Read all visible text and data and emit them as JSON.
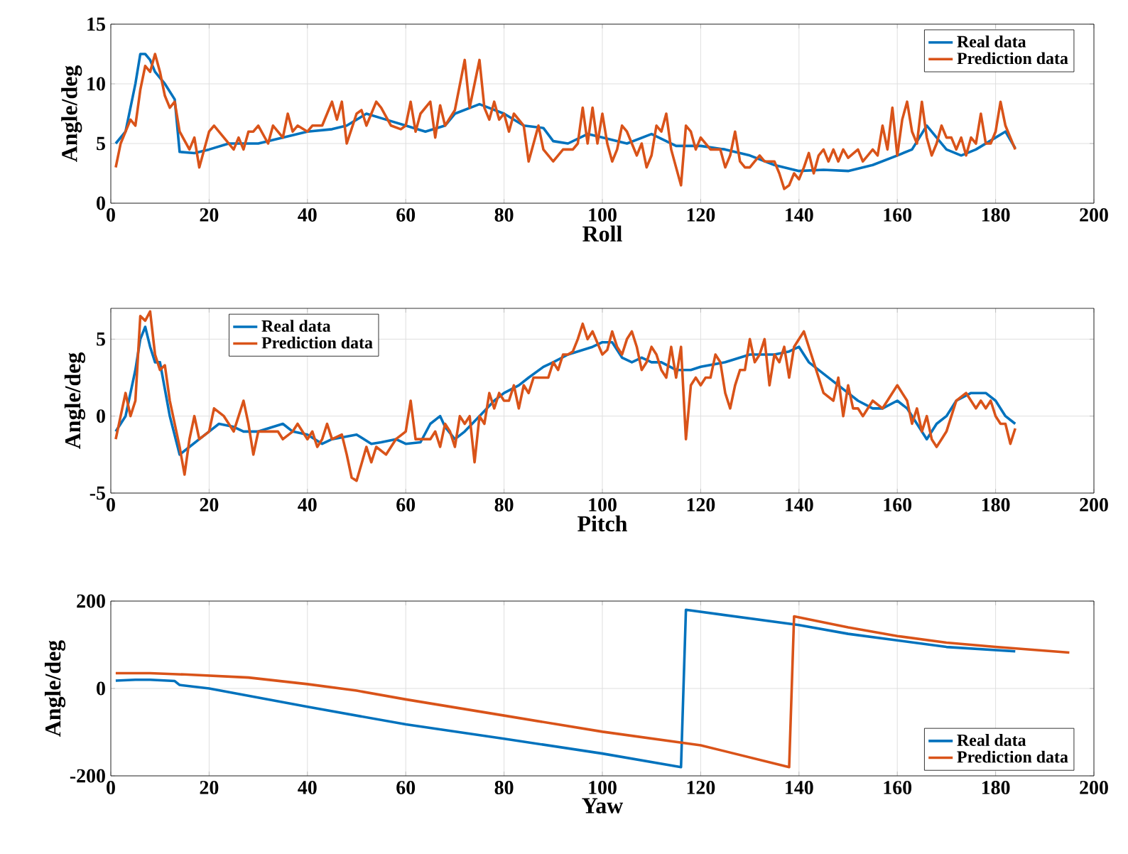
{
  "chart_data": [
    {
      "type": "line",
      "xlabel": "Roll",
      "ylabel": "Angle/deg",
      "xlim": [
        0,
        200
      ],
      "ylim": [
        0,
        15
      ],
      "xticks": [
        0,
        20,
        40,
        60,
        80,
        100,
        120,
        140,
        160,
        180,
        200
      ],
      "yticks": [
        0,
        5,
        10,
        15
      ],
      "grid": true,
      "legend": "top right",
      "line_style": "solid",
      "series": [
        {
          "name": "Real data",
          "color": "#0072bd",
          "x": [
            1,
            3,
            5,
            6,
            7,
            8,
            9,
            11,
            13,
            14,
            17,
            20,
            24,
            30,
            35,
            40,
            45,
            48,
            52,
            56,
            60,
            64,
            68,
            70,
            75,
            80,
            84,
            88,
            90,
            93,
            97,
            100,
            105,
            110,
            115,
            120,
            125,
            130,
            135,
            140,
            145,
            150,
            155,
            160,
            163,
            166,
            170,
            173,
            176,
            180,
            182,
            184
          ],
          "values": [
            5,
            6,
            10,
            12.5,
            12.5,
            12,
            11,
            10,
            8.7,
            4.3,
            4.2,
            4.5,
            5,
            5,
            5.5,
            6,
            6.2,
            6.5,
            7.5,
            7,
            6.5,
            6,
            6.5,
            7.5,
            8.3,
            7.5,
            6.5,
            6.3,
            5.2,
            5,
            5.8,
            5.5,
            5,
            5.8,
            4.8,
            4.8,
            4.5,
            4,
            3.2,
            2.7,
            2.8,
            2.7,
            3.2,
            4,
            4.5,
            6.5,
            4.5,
            4,
            4.5,
            5.5,
            6,
            4.6
          ]
        },
        {
          "name": "Prediction data",
          "color": "#d95319",
          "x": [
            1,
            2,
            4,
            5,
            6,
            7,
            8,
            9,
            10,
            11,
            12,
            13,
            14,
            16,
            17,
            18,
            19,
            20,
            21,
            23,
            25,
            26,
            27,
            28,
            29,
            30,
            32,
            33,
            35,
            36,
            37,
            38,
            40,
            41,
            43,
            45,
            46,
            47,
            48,
            50,
            51,
            52,
            54,
            55,
            57,
            59,
            60,
            61,
            62,
            63,
            65,
            66,
            67,
            68,
            70,
            72,
            73,
            75,
            76,
            77,
            78,
            79,
            80,
            81,
            82,
            84,
            85,
            86,
            87,
            88,
            90,
            92,
            94,
            95,
            96,
            97,
            98,
            99,
            100,
            101,
            102,
            103,
            104,
            105,
            107,
            108,
            109,
            110,
            111,
            112,
            113,
            114,
            115,
            116,
            117,
            118,
            119,
            120,
            121,
            122,
            124,
            125,
            126,
            127,
            128,
            129,
            130,
            131,
            132,
            133,
            135,
            136,
            137,
            138,
            139,
            140,
            141,
            142,
            143,
            144,
            145,
            146,
            147,
            148,
            149,
            150,
            152,
            153,
            154,
            155,
            156,
            157,
            158,
            159,
            160,
            161,
            162,
            163,
            164,
            165,
            166,
            167,
            168,
            169,
            170,
            171,
            172,
            173,
            174,
            175,
            176,
            177,
            178,
            179,
            180,
            181,
            182,
            184
          ],
          "values": [
            3,
            5,
            7,
            6.5,
            9.5,
            11.5,
            11,
            12.5,
            11,
            9,
            8,
            8.5,
            6,
            4.5,
            5.5,
            3,
            4.5,
            6,
            6.5,
            5.5,
            4.5,
            5.5,
            4.5,
            6,
            6,
            6.5,
            5,
            6.5,
            5.5,
            7.5,
            6,
            6.5,
            6,
            6.5,
            6.5,
            8.5,
            7,
            8.5,
            5,
            7.5,
            7.8,
            6.5,
            8.5,
            8,
            6.5,
            6.2,
            6.5,
            8.5,
            6,
            7.5,
            8.5,
            5.5,
            8.2,
            6.5,
            7.8,
            12,
            8,
            12,
            8,
            7,
            8.5,
            7,
            7.5,
            6,
            7.5,
            6.5,
            3.5,
            5,
            6.5,
            4.5,
            3.5,
            4.5,
            4.5,
            5,
            8,
            5,
            8,
            5,
            7.5,
            5,
            3.5,
            4.5,
            6.5,
            6,
            4,
            5,
            3,
            4,
            6.5,
            6,
            7.5,
            4.5,
            3,
            1.5,
            6.5,
            6,
            4.5,
            5.5,
            5,
            4.5,
            4.5,
            3,
            4,
            6,
            3.5,
            3,
            3,
            3.5,
            4,
            3.5,
            3.5,
            2.5,
            1.2,
            1.5,
            2.5,
            2,
            3,
            4.2,
            2.5,
            4,
            4.5,
            3.5,
            4.5,
            3.5,
            4.5,
            3.8,
            4.5,
            3.5,
            4,
            4.5,
            4,
            6.5,
            4.5,
            8,
            4,
            7,
            8.5,
            6,
            5,
            8.5,
            5.5,
            4,
            5,
            6.5,
            5.5,
            5.5,
            4.5,
            5.5,
            4,
            5.5,
            5,
            7.5,
            5,
            5,
            6,
            8.5,
            6.5,
            4.5
          ]
        }
      ]
    },
    {
      "type": "line",
      "xlabel": "Pitch",
      "ylabel": "Angle/deg",
      "xlim": [
        0,
        200
      ],
      "ylim": [
        -5,
        7
      ],
      "xticks": [
        0,
        20,
        40,
        60,
        80,
        100,
        120,
        140,
        160,
        180,
        200
      ],
      "yticks": [
        -5,
        0,
        5
      ],
      "grid": true,
      "legend": "top left",
      "line_style": "solid",
      "series": [
        {
          "name": "Real data",
          "color": "#0072bd",
          "x": [
            1,
            3,
            5,
            6,
            7,
            8,
            9,
            10,
            12,
            14,
            16,
            18,
            20,
            22,
            25,
            27,
            30,
            35,
            37,
            40,
            43,
            45,
            50,
            53,
            55,
            58,
            60,
            63,
            65,
            67,
            68,
            70,
            72,
            75,
            78,
            80,
            83,
            85,
            88,
            90,
            93,
            95,
            98,
            100,
            102,
            104,
            106,
            108,
            110,
            112,
            115,
            118,
            120,
            125,
            130,
            135,
            138,
            140,
            142,
            150,
            152,
            155,
            157,
            160,
            162,
            164,
            166,
            168,
            170,
            172,
            175,
            178,
            180,
            182,
            184
          ],
          "values": [
            -1,
            0,
            3,
            5,
            5.8,
            4.5,
            3.5,
            3.5,
            0,
            -2.5,
            -2,
            -1.5,
            -1,
            -0.5,
            -0.7,
            -1,
            -1,
            -0.5,
            -1,
            -1.2,
            -1.8,
            -1.5,
            -1.2,
            -1.8,
            -1.7,
            -1.5,
            -1.8,
            -1.7,
            -0.5,
            0,
            -0.7,
            -1.5,
            -1,
            0,
            1,
            1.5,
            2,
            2.5,
            3.2,
            3.5,
            4,
            4.2,
            4.5,
            4.8,
            4.8,
            3.8,
            3.5,
            3.8,
            3.5,
            3.5,
            3,
            3,
            3.2,
            3.5,
            4,
            4,
            4.2,
            4.5,
            3.5,
            1.5,
            1,
            0.5,
            0.5,
            1,
            0.5,
            -0.5,
            -1.5,
            -0.5,
            0,
            1,
            1.5,
            1.5,
            1,
            0,
            -0.5
          ]
        },
        {
          "name": "Prediction data",
          "color": "#d95319",
          "x": [
            1,
            2,
            3,
            4,
            5,
            6,
            7,
            8,
            9,
            10,
            11,
            12,
            13,
            14,
            15,
            16,
            17,
            18,
            20,
            21,
            23,
            25,
            27,
            28,
            29,
            30,
            32,
            34,
            35,
            37,
            38,
            40,
            41,
            42,
            43,
            44,
            45,
            47,
            48,
            49,
            50,
            52,
            53,
            54,
            56,
            58,
            60,
            61,
            62,
            64,
            65,
            66,
            67,
            68,
            69,
            70,
            71,
            72,
            73,
            74,
            75,
            76,
            77,
            78,
            79,
            80,
            81,
            82,
            83,
            84,
            85,
            86,
            87,
            88,
            89,
            90,
            91,
            92,
            93,
            94,
            95,
            96,
            97,
            98,
            100,
            101,
            102,
            103,
            104,
            105,
            106,
            107,
            108,
            109,
            110,
            111,
            112,
            113,
            114,
            115,
            116,
            117,
            118,
            119,
            120,
            121,
            122,
            123,
            124,
            125,
            126,
            127,
            128,
            129,
            130,
            131,
            132,
            133,
            134,
            135,
            136,
            137,
            138,
            139,
            140,
            141,
            145,
            147,
            148,
            149,
            150,
            151,
            152,
            153,
            155,
            157,
            160,
            162,
            163,
            164,
            165,
            166,
            167,
            168,
            169,
            170,
            172,
            174,
            176,
            177,
            178,
            179,
            180,
            181,
            182,
            183,
            184
          ],
          "values": [
            -1.5,
            0,
            1.5,
            0,
            1,
            6.5,
            6.2,
            6.8,
            4,
            3,
            3.3,
            1,
            -0.5,
            -2,
            -3.8,
            -1.5,
            0,
            -1.5,
            -1,
            0.5,
            0,
            -1,
            1,
            -0.5,
            -2.5,
            -1,
            -1,
            -1,
            -1.5,
            -1,
            -0.5,
            -1.5,
            -1,
            -2,
            -1.5,
            -0.5,
            -1.5,
            -1.2,
            -2.5,
            -4,
            -4.2,
            -2,
            -3,
            -2,
            -2.5,
            -1.5,
            -1,
            1,
            -1.5,
            -1.5,
            -1.5,
            -1,
            -2,
            -0.5,
            -1,
            -2,
            0,
            -0.5,
            0,
            -3,
            0,
            -0.5,
            1.5,
            0.5,
            1.5,
            1,
            1,
            2,
            0.5,
            2,
            1.5,
            2.5,
            2.5,
            2.5,
            2.5,
            3.5,
            3,
            4,
            4,
            4.2,
            5,
            6,
            5,
            5.5,
            4,
            4.3,
            5.5,
            4.5,
            4,
            5,
            5.5,
            4.5,
            3,
            3.5,
            4.5,
            4,
            3,
            2.5,
            4.5,
            2.5,
            4.5,
            -1.5,
            2,
            2.5,
            2,
            2.5,
            2.5,
            4,
            3.5,
            1.5,
            0.5,
            2,
            3,
            3,
            5,
            3.5,
            4,
            5,
            2,
            4,
            3.5,
            4.5,
            2.5,
            4.5,
            5,
            5.5,
            1.5,
            1,
            2.5,
            0,
            2,
            0.5,
            0.5,
            0,
            1,
            0.5,
            2,
            1,
            -0.5,
            0.5,
            -1,
            0,
            -1.5,
            -2,
            -1.5,
            -1,
            1,
            1.5,
            0.5,
            1,
            0.5,
            1,
            0,
            -0.5,
            -0.5,
            -1.8,
            -0.8
          ]
        }
      ]
    },
    {
      "type": "line",
      "xlabel": "Yaw",
      "ylabel": "Angle/deg",
      "xlim": [
        0,
        200
      ],
      "ylim": [
        -200,
        200
      ],
      "xticks": [
        0,
        20,
        40,
        60,
        80,
        100,
        120,
        140,
        160,
        180,
        200
      ],
      "yticks": [
        -200,
        0,
        200
      ],
      "grid": true,
      "legend": "bottom right",
      "line_style": "solid",
      "series": [
        {
          "name": "Real data",
          "color": "#0072bd",
          "x": [
            1,
            5,
            8,
            13,
            14,
            20,
            40,
            60,
            80,
            100,
            116,
            117,
            140,
            150,
            160,
            170,
            184
          ],
          "values": [
            18,
            20,
            20,
            17,
            8,
            0,
            -42,
            -82,
            -115,
            -149,
            -180,
            180,
            145,
            125,
            110,
            95,
            85
          ]
        },
        {
          "name": "Prediction data",
          "color": "#d95319",
          "x": [
            1,
            8,
            15,
            28,
            40,
            50,
            60,
            80,
            100,
            120,
            138,
            139,
            150,
            160,
            170,
            180,
            195
          ],
          "values": [
            35,
            35,
            32,
            25,
            10,
            -5,
            -25,
            -62,
            -99,
            -130,
            -180,
            165,
            140,
            120,
            105,
            95,
            82
          ]
        }
      ]
    }
  ]
}
